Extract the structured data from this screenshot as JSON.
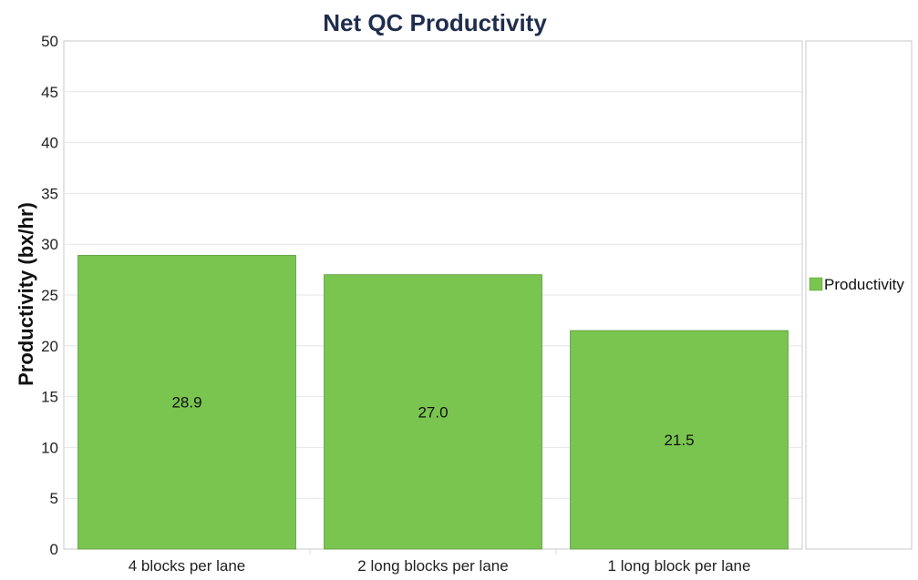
{
  "chart_data": {
    "type": "bar",
    "title": "Net QC Productivity",
    "xlabel": "",
    "ylabel": "Productivity (bx/hr)",
    "categories": [
      "4 blocks per lane",
      "2 long blocks per lane",
      "1 long block per lane"
    ],
    "series": [
      {
        "name": "Productivity",
        "values": [
          28.9,
          27.0,
          21.5
        ],
        "labels": [
          "28.9",
          "27.0",
          "21.5"
        ],
        "color": "#7ac450"
      }
    ],
    "ylim": [
      0,
      50
    ],
    "yticks": [
      0,
      5,
      10,
      15,
      20,
      25,
      30,
      35,
      40,
      45,
      50
    ],
    "grid": true,
    "legend": "right"
  }
}
